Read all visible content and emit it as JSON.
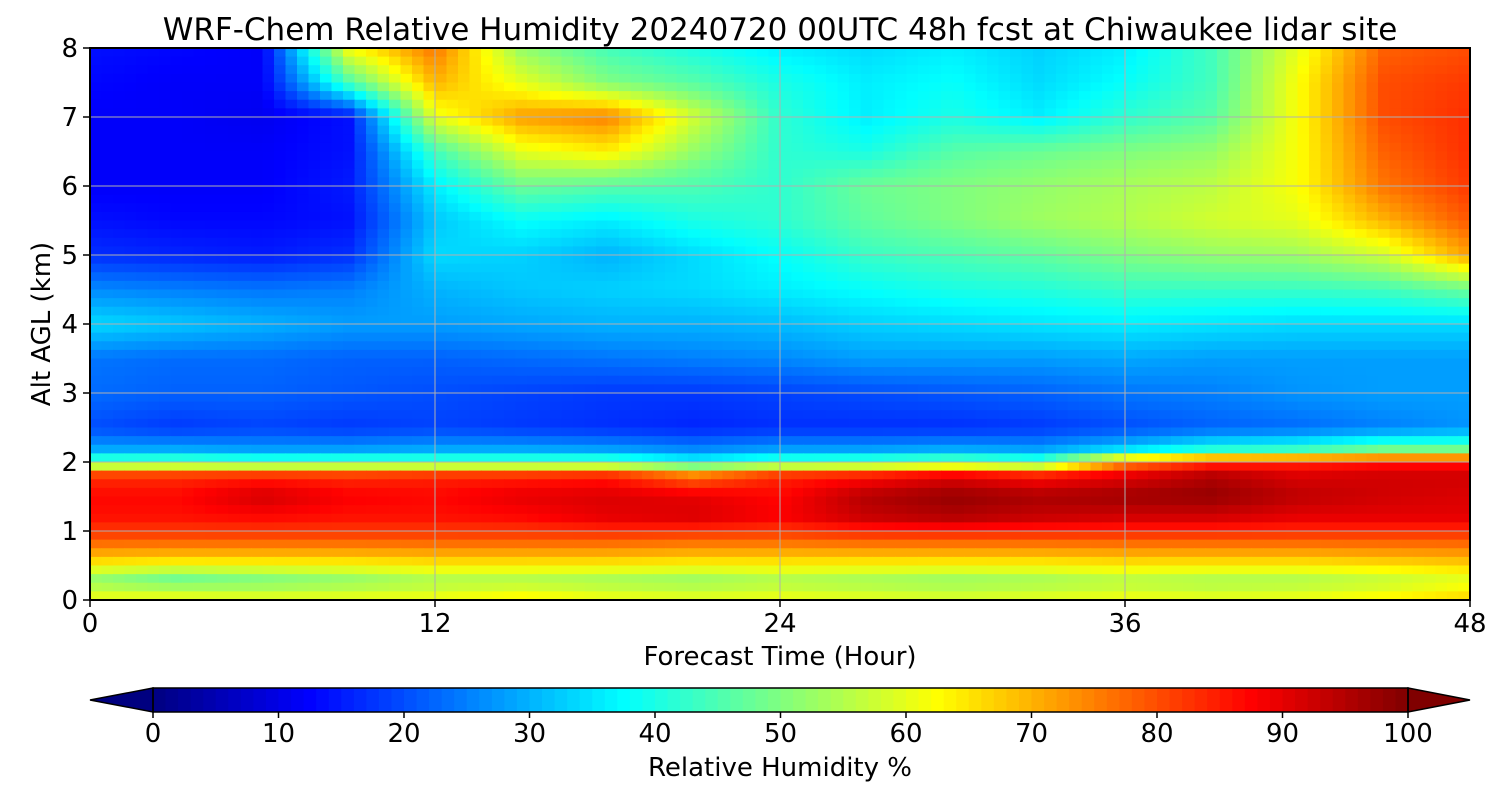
{
  "chart_data": {
    "type": "heatmap",
    "title": "WRF-Chem Relative Humidity 20240720 00UTC 48h fcst at Chiwaukee lidar site",
    "xlabel": "Forecast Time (Hour)",
    "ylabel": "Alt AGL (km)",
    "xlim": [
      0,
      48
    ],
    "ylim": [
      0,
      8
    ],
    "xticks": [
      0,
      12,
      24,
      36,
      48
    ],
    "yticks": [
      0,
      1,
      2,
      3,
      4,
      5,
      6,
      7,
      8
    ],
    "grid": true,
    "colormap": "jet",
    "colorbar": {
      "label": "Relative Humidity %",
      "min": 0,
      "max": 100,
      "ticks": [
        0,
        10,
        20,
        30,
        40,
        50,
        60,
        70,
        80,
        90,
        100
      ],
      "extend": "both",
      "orientation": "horizontal",
      "placement": "bottom"
    },
    "x": [
      0,
      3,
      6,
      9,
      12,
      15,
      18,
      21,
      24,
      27,
      30,
      33,
      36,
      39,
      42,
      45,
      48
    ],
    "y": [
      0,
      0.1,
      0.3,
      0.6,
      0.9,
      1.2,
      1.5,
      1.8,
      2.0,
      2.2,
      2.5,
      3.0,
      3.5,
      4.0,
      4.5,
      5.0,
      5.5,
      6.0,
      6.5,
      7.0,
      7.5,
      8.0
    ],
    "z": [
      [
        62,
        63,
        63,
        63,
        64,
        66,
        63,
        62,
        63,
        62,
        61,
        62,
        64,
        63,
        63,
        66,
        68
      ],
      [
        58,
        57,
        56,
        57,
        58,
        60,
        58,
        57,
        58,
        57,
        56,
        57,
        58,
        57,
        58,
        60,
        64
      ],
      [
        52,
        48,
        50,
        52,
        55,
        55,
        54,
        53,
        55,
        54,
        53,
        54,
        56,
        55,
        55,
        57,
        60
      ],
      [
        68,
        67,
        67,
        67,
        68,
        68,
        68,
        67,
        67,
        67,
        67,
        67,
        68,
        68,
        68,
        69,
        70
      ],
      [
        80,
        80,
        80,
        80,
        80,
        80,
        80,
        79,
        79,
        80,
        80,
        80,
        80,
        80,
        80,
        80,
        80
      ],
      [
        86,
        86,
        87,
        86,
        86,
        87,
        90,
        91,
        88,
        93,
        95,
        93,
        92,
        92,
        90,
        90,
        90
      ],
      [
        87,
        87,
        92,
        88,
        87,
        90,
        91,
        90,
        87,
        95,
        98,
        96,
        97,
        98,
        94,
        92,
        91
      ],
      [
        83,
        83,
        84,
        83,
        84,
        84,
        85,
        76,
        84,
        86,
        90,
        86,
        90,
        95,
        91,
        92,
        92
      ],
      [
        45,
        46,
        44,
        45,
        45,
        45,
        45,
        38,
        44,
        45,
        48,
        44,
        73,
        82,
        83,
        85,
        85
      ],
      [
        28,
        28,
        27,
        27,
        28,
        28,
        27,
        25,
        27,
        27,
        28,
        27,
        32,
        38,
        40,
        46,
        46
      ],
      [
        20,
        18,
        19,
        18,
        19,
        18,
        17,
        16,
        17,
        17,
        17,
        18,
        20,
        22,
        23,
        25,
        27
      ],
      [
        23,
        22,
        22,
        21,
        20,
        19,
        18,
        18,
        19,
        20,
        21,
        22,
        24,
        25,
        27,
        28,
        28
      ],
      [
        24,
        23,
        23,
        22,
        22,
        23,
        24,
        25,
        26,
        28,
        28,
        28,
        29,
        28,
        28,
        28,
        28
      ],
      [
        34,
        32,
        30,
        28,
        28,
        29,
        30,
        30,
        31,
        33,
        34,
        35,
        36,
        35,
        34,
        34,
        34
      ],
      [
        26,
        25,
        24,
        25,
        30,
        32,
        33,
        34,
        36,
        38,
        40,
        41,
        43,
        43,
        43,
        44,
        48
      ],
      [
        17,
        16,
        15,
        17,
        34,
        33,
        30,
        34,
        38,
        43,
        45,
        47,
        50,
        52,
        53,
        58,
        72
      ],
      [
        14,
        13,
        13,
        14,
        32,
        38,
        36,
        40,
        42,
        47,
        50,
        53,
        55,
        58,
        60,
        70,
        79
      ],
      [
        12,
        12,
        12,
        15,
        36,
        48,
        46,
        45,
        42,
        48,
        50,
        52,
        54,
        56,
        62,
        76,
        82
      ],
      [
        12,
        12,
        12,
        14,
        44,
        60,
        64,
        52,
        42,
        40,
        46,
        48,
        50,
        52,
        62,
        78,
        83
      ],
      [
        12,
        12,
        11,
        14,
        60,
        72,
        75,
        58,
        42,
        36,
        40,
        36,
        42,
        46,
        62,
        80,
        83
      ],
      [
        13,
        12,
        12,
        45,
        70,
        60,
        50,
        46,
        40,
        36,
        38,
        34,
        38,
        44,
        62,
        80,
        82
      ],
      [
        14,
        13,
        12,
        62,
        76,
        52,
        44,
        40,
        36,
        34,
        36,
        33,
        36,
        44,
        60,
        78,
        80
      ]
    ]
  }
}
